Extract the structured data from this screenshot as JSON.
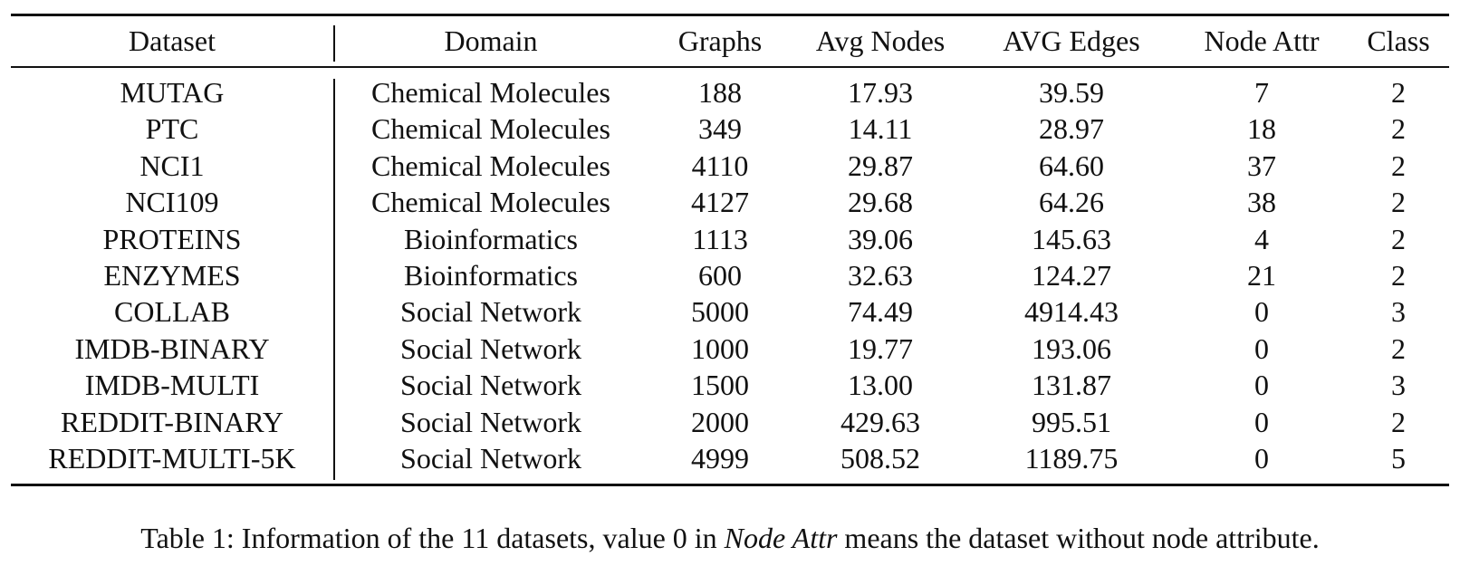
{
  "table": {
    "headers": [
      "Dataset",
      "Domain",
      "Graphs",
      "Avg Nodes",
      "AVG Edges",
      "Node Attr",
      "Class"
    ],
    "rows": [
      [
        "MUTAG",
        "Chemical Molecules",
        "188",
        "17.93",
        "39.59",
        "7",
        "2"
      ],
      [
        "PTC",
        "Chemical Molecules",
        "349",
        "14.11",
        "28.97",
        "18",
        "2"
      ],
      [
        "NCI1",
        "Chemical Molecules",
        "4110",
        "29.87",
        "64.60",
        "37",
        "2"
      ],
      [
        "NCI109",
        "Chemical Molecules",
        "4127",
        "29.68",
        "64.26",
        "38",
        "2"
      ],
      [
        "PROTEINS",
        "Bioinformatics",
        "1113",
        "39.06",
        "145.63",
        "4",
        "2"
      ],
      [
        "ENZYMES",
        "Bioinformatics",
        "600",
        "32.63",
        "124.27",
        "21",
        "2"
      ],
      [
        "COLLAB",
        "Social Network",
        "5000",
        "74.49",
        "4914.43",
        "0",
        "3"
      ],
      [
        "IMDB-BINARY",
        "Social Network",
        "1000",
        "19.77",
        "193.06",
        "0",
        "2"
      ],
      [
        "IMDB-MULTI",
        "Social Network",
        "1500",
        "13.00",
        "131.87",
        "0",
        "3"
      ],
      [
        "REDDIT-BINARY",
        "Social Network",
        "2000",
        "429.63",
        "995.51",
        "0",
        "2"
      ],
      [
        "REDDIT-MULTI-5K",
        "Social Network",
        "4999",
        "508.52",
        "1189.75",
        "0",
        "5"
      ]
    ]
  },
  "caption": {
    "prefix": "Table 1: Information of the 11 datasets, value 0 in ",
    "emphasis": "Node Attr",
    "suffix": " means the dataset without node attribute."
  }
}
